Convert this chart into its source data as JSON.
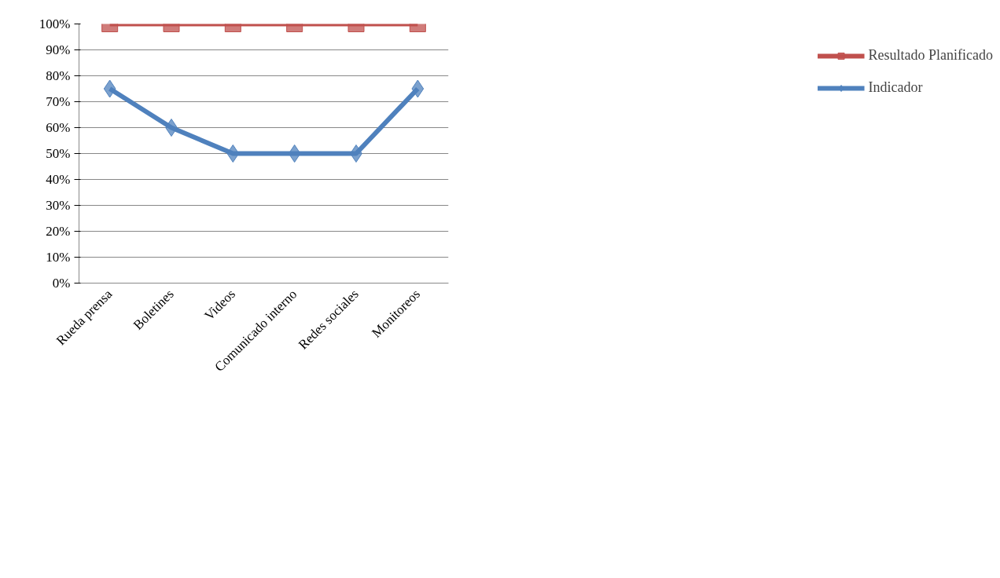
{
  "chart_data": {
    "type": "line",
    "categories": [
      "Rueda prensa",
      "Boletines",
      "Videos",
      "Comunicado interno",
      "Redes sociales",
      "Monitoreos"
    ],
    "series": [
      {
        "name": "Resultado Planificado",
        "color": "#c0504d",
        "marker": "square",
        "values": [
          100,
          100,
          100,
          100,
          100,
          100
        ]
      },
      {
        "name": "Indicador",
        "color": "#4f81bd",
        "marker": "diamond",
        "values": [
          75,
          60,
          50,
          50,
          50,
          75
        ]
      }
    ],
    "ylim": [
      0,
      100
    ],
    "yticks": [
      {
        "value": 0,
        "label": "0%"
      },
      {
        "value": 10,
        "label": "10%"
      },
      {
        "value": 20,
        "label": "20%"
      },
      {
        "value": 30,
        "label": "30%"
      },
      {
        "value": 40,
        "label": "40%"
      },
      {
        "value": 50,
        "label": "50%"
      },
      {
        "value": 60,
        "label": "60%"
      },
      {
        "value": 70,
        "label": "70%"
      },
      {
        "value": 80,
        "label": "80%"
      },
      {
        "value": 90,
        "label": "90%"
      },
      {
        "value": 100,
        "label": "100%"
      }
    ],
    "grid": "y",
    "legend": "right"
  }
}
